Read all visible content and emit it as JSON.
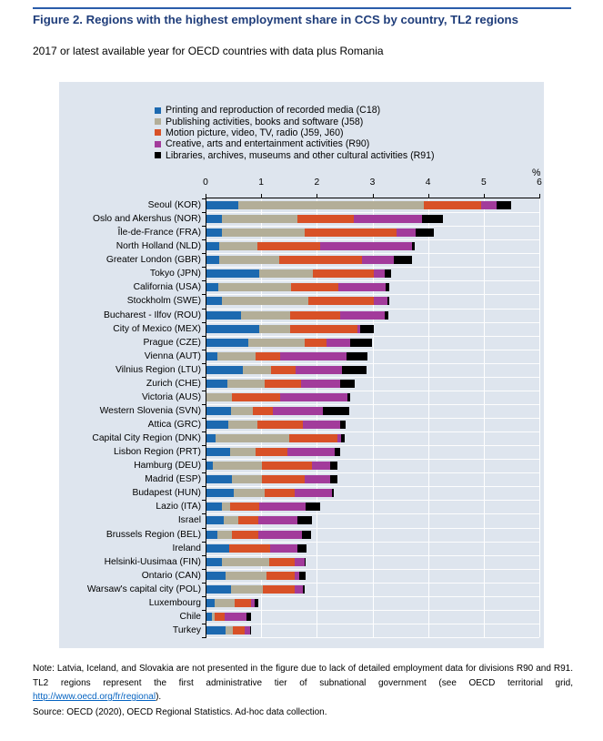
{
  "figure": {
    "title": "Figure 2. Regions with the highest employment share in CCS by country, TL2 regions",
    "subtitle": "2017 or latest available year for OECD countries with data plus Romania"
  },
  "note": {
    "text_before_link": "Note: Latvia, Iceland, and Slovakia are not presented in the figure due to lack of detailed employment data for divisions R90 and R91. TL2 regions represent the first administrative tier of subnational government (see OECD territorial grid, ",
    "link": "http://www.oecd.org/fr/regional",
    "text_after_link": ").",
    "source": "Source: OECD (2020), OECD Regional Statistics. Ad-hoc data collection."
  },
  "colors": {
    "c18": "#1C69B0",
    "j58": "#B3AE98",
    "j59_j60": "#D85127",
    "r90": "#A23B9B",
    "r91": "#000000",
    "panel_bg": "#DEE5EE",
    "title": "#1F3D7A",
    "link": "#0563C1"
  },
  "chart_data": {
    "type": "bar",
    "orientation": "horizontal-stacked",
    "title": "Figure 2. Regions with the highest employment share in CCS by country, TL2 regions",
    "subtitle": "2017 or latest available year for OECD countries with data plus Romania",
    "unit_label": "%",
    "xlim": [
      0,
      6
    ],
    "x_ticks": [
      0,
      1,
      2,
      3,
      4,
      5,
      6
    ],
    "grid": true,
    "legend_position": "top",
    "categories": [
      "Seoul (KOR)",
      "Oslo and Akershus (NOR)",
      "Île-de-France (FRA)",
      "North Holland (NLD)",
      "Greater London (GBR)",
      "Tokyo (JPN)",
      "California (USA)",
      "Stockholm (SWE)",
      "Bucharest - Ilfov (ROU)",
      "City of Mexico (MEX)",
      "Prague (CZE)",
      "Vienna (AUT)",
      "Vilnius Region (LTU)",
      "Zurich (CHE)",
      "Victoria (AUS)",
      "Western Slovenia (SVN)",
      "Attica (GRC)",
      "Capital City Region (DNK)",
      "Lisbon Region (PRT)",
      "Hamburg (DEU)",
      "Madrid (ESP)",
      "Budapest (HUN)",
      "Lazio (ITA)",
      "Israel",
      "Brussels Region (BEL)",
      "Ireland",
      "Helsinki-Uusimaa (FIN)",
      "Ontario (CAN)",
      "Warsaw's capital city (POL)",
      "Luxembourg",
      "Chile",
      "Turkey"
    ],
    "series": [
      {
        "name": "Printing and reproduction of recorded media (C18)",
        "color_key": "c18",
        "values": [
          0.57,
          0.27,
          0.28,
          0.23,
          0.23,
          0.95,
          0.21,
          0.27,
          0.62,
          0.95,
          0.76,
          0.2,
          0.66,
          0.37,
          0.0,
          0.44,
          0.39,
          0.16,
          0.42,
          0.11,
          0.45,
          0.49,
          0.28,
          0.31,
          0.2,
          0.41,
          0.27,
          0.35,
          0.44,
          0.14,
          0.09,
          0.34
        ]
      },
      {
        "name": "Publishing activities, books and software (J58)",
        "color_key": "j58",
        "values": [
          3.34,
          1.36,
          1.49,
          0.68,
          1.07,
          0.97,
          1.31,
          1.56,
          0.88,
          0.56,
          1.01,
          0.68,
          0.5,
          0.67,
          0.46,
          0.4,
          0.53,
          1.33,
          0.47,
          0.88,
          0.55,
          0.56,
          0.15,
          0.26,
          0.26,
          0.0,
          0.85,
          0.73,
          0.58,
          0.36,
          0.06,
          0.14
        ]
      },
      {
        "name": "Motion picture, video, TV, radio (J59, J60)",
        "color_key": "j59_j60",
        "values": [
          1.03,
          1.02,
          1.64,
          1.13,
          1.5,
          1.09,
          0.85,
          1.17,
          0.9,
          1.21,
          0.39,
          0.45,
          0.44,
          0.66,
          0.87,
          0.36,
          0.81,
          0.86,
          0.57,
          0.9,
          0.76,
          0.53,
          0.52,
          0.37,
          0.48,
          0.74,
          0.47,
          0.5,
          0.56,
          0.3,
          0.18,
          0.21
        ]
      },
      {
        "name": "Creative, arts and entertainment activities (R90)",
        "color_key": "r90",
        "values": [
          0.28,
          1.23,
          0.35,
          1.65,
          0.56,
          0.19,
          0.85,
          0.25,
          0.8,
          0.04,
          0.42,
          1.19,
          0.84,
          0.71,
          1.2,
          0.9,
          0.67,
          0.07,
          0.84,
          0.33,
          0.47,
          0.68,
          0.84,
          0.69,
          0.78,
          0.49,
          0.17,
          0.09,
          0.16,
          0.07,
          0.39,
          0.09
        ]
      },
      {
        "name": "Libraries, archives, museums and other cultural activities (R91)",
        "color_key": "r91",
        "values": [
          0.25,
          0.37,
          0.33,
          0.05,
          0.34,
          0.12,
          0.07,
          0.04,
          0.07,
          0.25,
          0.4,
          0.38,
          0.43,
          0.25,
          0.05,
          0.46,
          0.1,
          0.07,
          0.11,
          0.14,
          0.12,
          0.03,
          0.26,
          0.27,
          0.16,
          0.16,
          0.03,
          0.11,
          0.03,
          0.07,
          0.08,
          0.01
        ]
      }
    ]
  }
}
